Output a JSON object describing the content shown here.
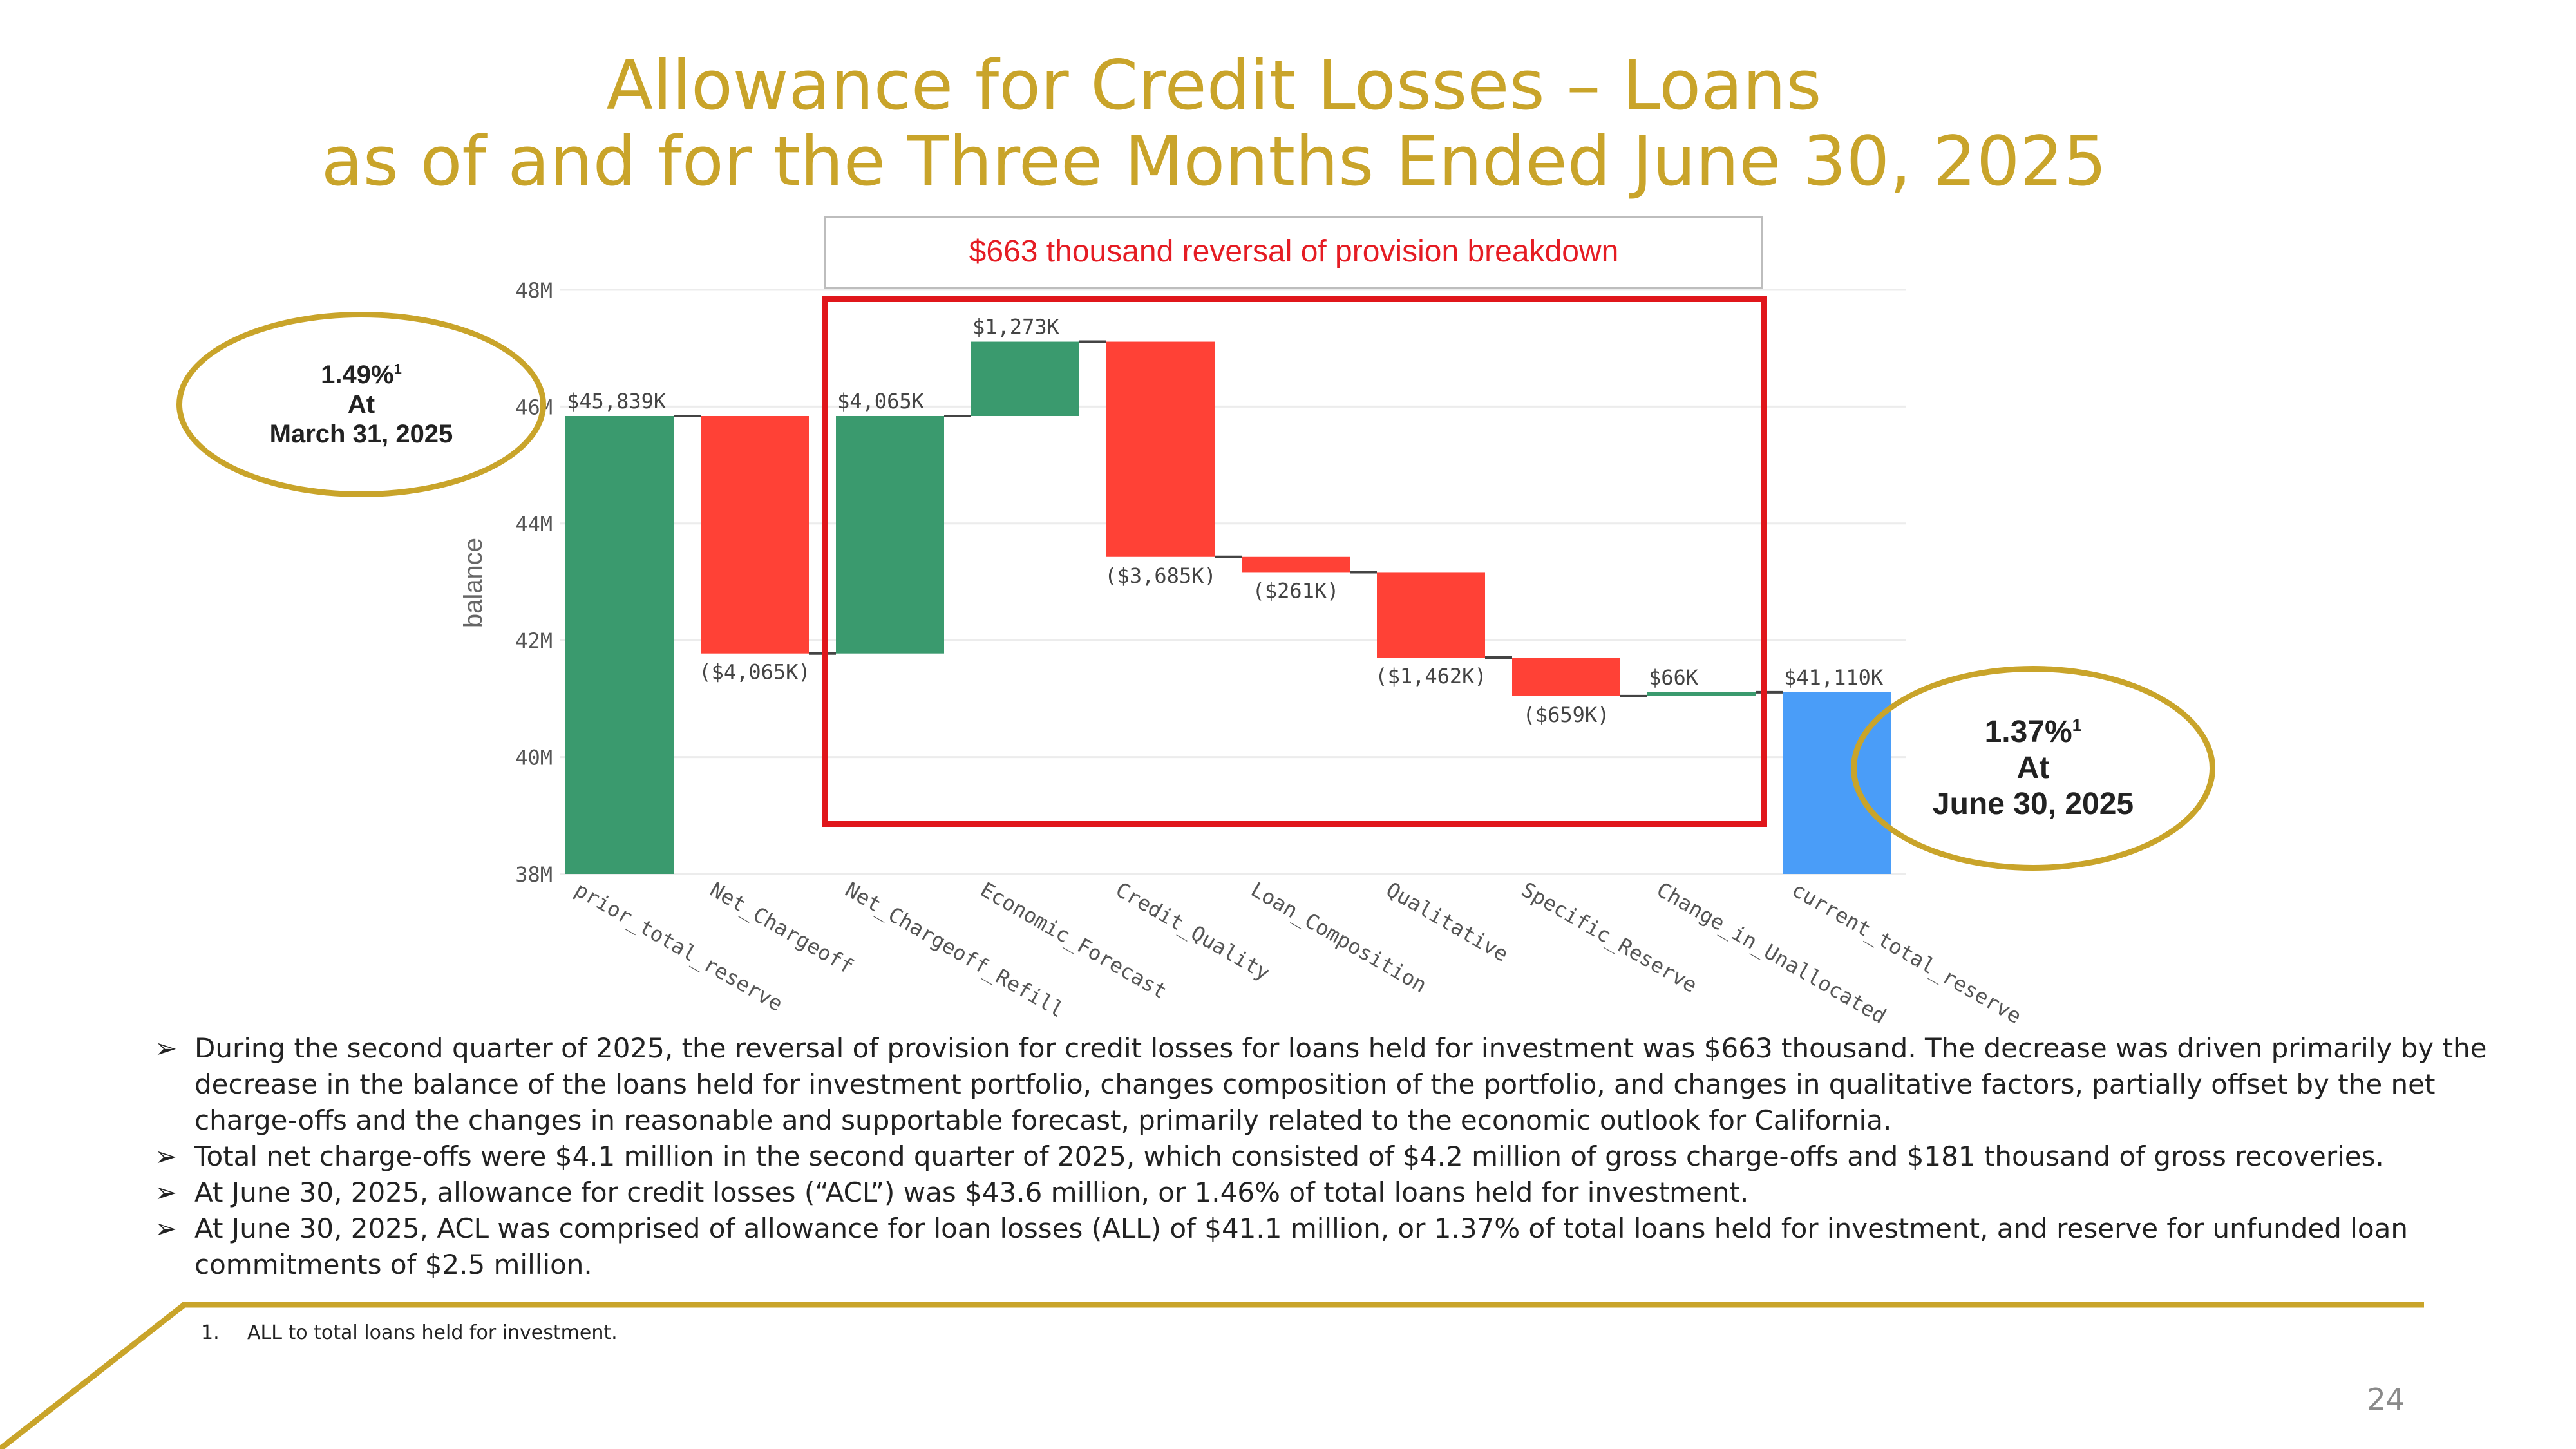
{
  "slide": {
    "title_line1": "Allowance for Credit Losses – Loans",
    "title_line2": "as of and for the Three Months Ended June 30, 2025",
    "breakdown_label": "$663 thousand reversal of provision breakdown",
    "page_number": "24",
    "footnote_number": "1.",
    "footnote_text": "ALL to total loans held for investment.",
    "accent_color": "#c9a42a",
    "highlight_color": "#e0161b"
  },
  "callouts": {
    "left": {
      "value": "1.49%",
      "sup": "1",
      "at": "At",
      "date": "March 31, 2025"
    },
    "right": {
      "value": "1.37%",
      "sup": "1",
      "at": "At",
      "date": "June 30, 2025"
    }
  },
  "bullets": [
    {
      "icon": "arrow-bullet-icon",
      "text": "During the second quarter of 2025, the reversal of provision for credit losses for loans held for investment was $663 thousand. The decrease was driven primarily by the decrease in the balance of the loans held for investment portfolio, changes composition of the portfolio, and changes in qualitative factors, partially offset by the net charge-offs and the changes in reasonable and supportable forecast, primarily related to the economic outlook for California."
    },
    {
      "icon": "arrow-bullet-icon",
      "text": "Total net charge-offs were $4.1 million in the second quarter of 2025, which consisted of $4.2 million of gross charge-offs and $181 thousand of gross recoveries."
    },
    {
      "icon": "arrow-bullet-icon",
      "text": "At June 30, 2025, allowance for credit losses (“ACL”) was $43.6 million, or 1.46% of total loans held for investment."
    },
    {
      "icon": "arrow-bullet-icon",
      "text": "At June 30, 2025,  ACL was comprised of allowance for loan losses (ALL) of $41.1 million, or 1.37% of total loans held for investment, and reserve for unfunded loan commitments of $2.5 million."
    }
  ],
  "chart_data": {
    "type": "waterfall",
    "ylabel": "balance",
    "ylim": [
      38,
      48
    ],
    "y_unit": "M",
    "y_ticks": [
      "38M",
      "40M",
      "42M",
      "44M",
      "46M",
      "48M"
    ],
    "y_tick_values": [
      38,
      40,
      42,
      44,
      46,
      48
    ],
    "grid": true,
    "colors": {
      "increase": "#3a9a6e",
      "decrease": "#ff4136",
      "total": "#4a9df8"
    },
    "categories": [
      "prior_total_reserve",
      "Net_Chargeoff",
      "Net_Chargeoff_Refill",
      "Economic_Forecast",
      "Credit_Quality",
      "Loan_Composition",
      "Qualitative",
      "Specific_Reserve",
      "Change_in_Unallocated",
      "current_total_reserve"
    ],
    "measures": [
      "total",
      "relative",
      "relative",
      "relative",
      "relative",
      "relative",
      "relative",
      "relative",
      "relative",
      "total"
    ],
    "values_k": [
      45839,
      -4065,
      4065,
      1273,
      -3685,
      -261,
      -1462,
      -659,
      66,
      41110
    ],
    "data_labels": [
      "$45,839K",
      "($4,065K)",
      "$4,065K",
      "$1,273K",
      "($3,685K)",
      "($261K)",
      "($1,462K)",
      "($659K)",
      "$66K",
      "$41,110K"
    ]
  }
}
